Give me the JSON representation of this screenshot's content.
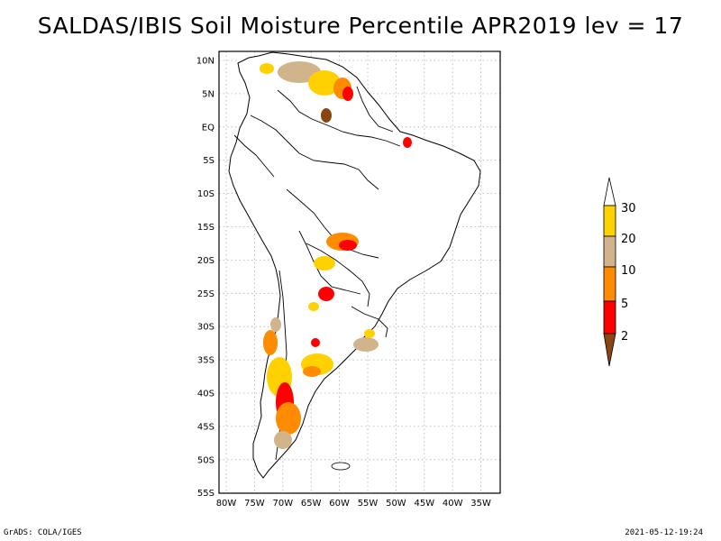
{
  "title": "SALDAS/IBIS Soil Moisture Percentile APR2019 lev = 17",
  "lat_ticks": [
    "10N",
    "5N",
    "EQ",
    "5S",
    "10S",
    "15S",
    "20S",
    "25S",
    "30S",
    "35S",
    "40S",
    "45S",
    "50S",
    "55S"
  ],
  "lon_ticks": [
    "80W",
    "75W",
    "70W",
    "65W",
    "60W",
    "55W",
    "50W",
    "45W",
    "40W",
    "35W"
  ],
  "colorbar": {
    "labels": [
      "30",
      "20",
      "10",
      "5",
      "2"
    ],
    "colors": [
      "#ffffff",
      "#ffd100",
      "#d2b48c",
      "#ff8c00",
      "#ff0000",
      "#8b4513"
    ]
  },
  "footer": {
    "left": "GrADS: COLA/IGES",
    "right": "2021-05-12-19:24"
  }
}
